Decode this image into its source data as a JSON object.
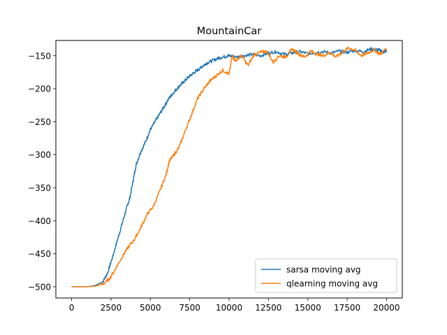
{
  "chart_data": {
    "type": "line",
    "title": "MountainCar",
    "xlabel": "",
    "ylabel": "",
    "xlim": [
      -1000,
      21000
    ],
    "ylim": [
      -517,
      -127
    ],
    "xticks": [
      0,
      2500,
      5000,
      7500,
      10000,
      12500,
      15000,
      17500,
      20000
    ],
    "xtick_labels": [
      "0",
      "2500",
      "5000",
      "7500",
      "10000",
      "12500",
      "15000",
      "17500",
      "20000"
    ],
    "yticks": [
      -150,
      -200,
      -250,
      -300,
      -350,
      -400,
      -450,
      -500
    ],
    "ytick_labels": [
      "−150",
      "−200",
      "−250",
      "−300",
      "−350",
      "−400",
      "−450",
      "−500"
    ],
    "grid": false,
    "legend_position": "lower-right",
    "series": [
      {
        "name": "sarsa moving avg",
        "color": "#1f77b4",
        "x": [
          0,
          1000,
          1500,
          2000,
          2300,
          2600,
          2900,
          3200,
          3500,
          3700,
          3900,
          4100,
          4400,
          4700,
          5000,
          5300,
          5600,
          5900,
          6200,
          6500,
          6800,
          7100,
          7400,
          7700,
          8000,
          8300,
          8600,
          9000,
          9400,
          9800,
          10000,
          10500,
          11000,
          11500,
          12000,
          12500,
          13000,
          13500,
          14000,
          14500,
          15000,
          15500,
          16000,
          16500,
          17000,
          17500,
          18000,
          18500,
          19000,
          19300,
          19600,
          19800,
          20000
        ],
        "y": [
          -500,
          -500,
          -498,
          -492,
          -478,
          -455,
          -430,
          -405,
          -380,
          -365,
          -340,
          -315,
          -295,
          -280,
          -262,
          -250,
          -238,
          -226,
          -214,
          -205,
          -197,
          -190,
          -183,
          -177,
          -172,
          -166,
          -161,
          -157,
          -153,
          -151,
          -150,
          -152,
          -150,
          -148,
          -150,
          -146,
          -144,
          -148,
          -146,
          -144,
          -147,
          -145,
          -144,
          -146,
          -143,
          -145,
          -142,
          -144,
          -140,
          -141,
          -142,
          -145,
          -142
        ]
      },
      {
        "name": "qlearning moving avg",
        "color": "#ff7f0e",
        "x": [
          0,
          1000,
          1500,
          2000,
          2400,
          2800,
          3200,
          3600,
          4000,
          4400,
          4800,
          5200,
          5600,
          6000,
          6200,
          6500,
          6800,
          7200,
          7600,
          8000,
          8400,
          8800,
          9200,
          9600,
          10000,
          10200,
          10400,
          10800,
          11200,
          11600,
          12000,
          12400,
          12800,
          13200,
          13600,
          14000,
          14400,
          14800,
          15200,
          15600,
          16000,
          16400,
          16800,
          17200,
          17600,
          18000,
          18400,
          18800,
          19200,
          19600,
          20000
        ],
        "y": [
          -500,
          -500,
          -499,
          -496,
          -488,
          -472,
          -455,
          -440,
          -428,
          -410,
          -390,
          -378,
          -355,
          -330,
          -310,
          -300,
          -290,
          -265,
          -240,
          -215,
          -200,
          -188,
          -180,
          -172,
          -178,
          -150,
          -158,
          -150,
          -165,
          -148,
          -145,
          -143,
          -160,
          -150,
          -152,
          -140,
          -147,
          -152,
          -143,
          -148,
          -150,
          -145,
          -152,
          -145,
          -138,
          -142,
          -150,
          -146,
          -141,
          -148,
          -139
        ]
      }
    ]
  }
}
